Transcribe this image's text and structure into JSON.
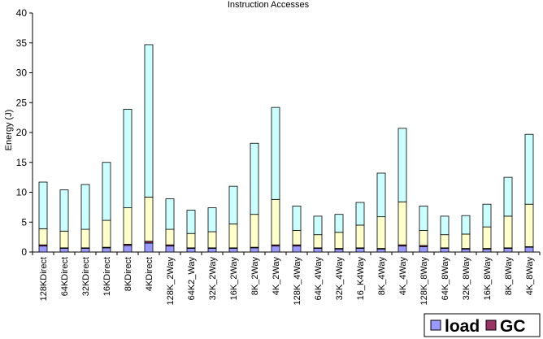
{
  "chart_data": {
    "type": "bar",
    "stacked": true,
    "title": "Instruction Accesses",
    "xlabel": "",
    "ylabel": "Energy (J)",
    "ylim": [
      0,
      40
    ],
    "yticks": [
      0,
      5,
      10,
      15,
      20,
      25,
      30,
      35,
      40
    ],
    "grid": false,
    "legend_position": "bottom-right",
    "categories": [
      "128KDirect",
      "64KDirect",
      "32KDirect",
      "16KDirect",
      "8KDirect",
      "4KDirect",
      "128K_2Way",
      "64K2_Way",
      "32K_2Way",
      "16K_2Way",
      "8K_2Way",
      "4K_2Way",
      "128K_4Way",
      "64K_4Way",
      "32K_4Way",
      "16_K4Way",
      "8K_4Way",
      "4K_4Way",
      "128K_8Way",
      "64K_8Way",
      "32K_8Way",
      "16K_8Way",
      "8K_8Way",
      "4K_8Way"
    ],
    "series": [
      {
        "name": "load",
        "color": "#9999ff",
        "values": [
          1.0,
          0.6,
          0.6,
          0.7,
          1.1,
          1.5,
          1.0,
          0.6,
          0.6,
          0.6,
          0.7,
          1.0,
          1.0,
          0.6,
          0.5,
          0.6,
          0.5,
          1.0,
          0.9,
          0.6,
          0.5,
          0.5,
          0.6,
          0.8
        ],
        "legend": true
      },
      {
        "name": "GC",
        "color": "#993366",
        "values": [
          0.2,
          0.1,
          0.1,
          0.1,
          0.2,
          0.3,
          0.2,
          0.1,
          0.1,
          0.1,
          0.1,
          0.2,
          0.2,
          0.1,
          0.1,
          0.1,
          0.1,
          0.2,
          0.2,
          0.1,
          0.1,
          0.1,
          0.1,
          0.1
        ],
        "legend": true
      },
      {
        "name": "",
        "color": "#ffffcc",
        "values": [
          2.7,
          2.8,
          3.1,
          4.5,
          6.1,
          7.4,
          2.6,
          2.4,
          2.7,
          4.0,
          5.5,
          7.6,
          2.4,
          2.2,
          2.7,
          3.8,
          5.3,
          7.2,
          2.5,
          2.2,
          2.4,
          3.6,
          5.3,
          7.1
        ],
        "legend": false
      },
      {
        "name": "",
        "color": "#ccffff",
        "values": [
          7.8,
          6.9,
          7.5,
          9.7,
          16.5,
          25.5,
          5.1,
          3.9,
          4.0,
          6.3,
          11.9,
          15.4,
          4.1,
          3.1,
          3.0,
          3.8,
          7.3,
          12.3,
          4.1,
          3.1,
          3.1,
          3.8,
          6.5,
          11.7
        ],
        "legend": false
      }
    ]
  }
}
